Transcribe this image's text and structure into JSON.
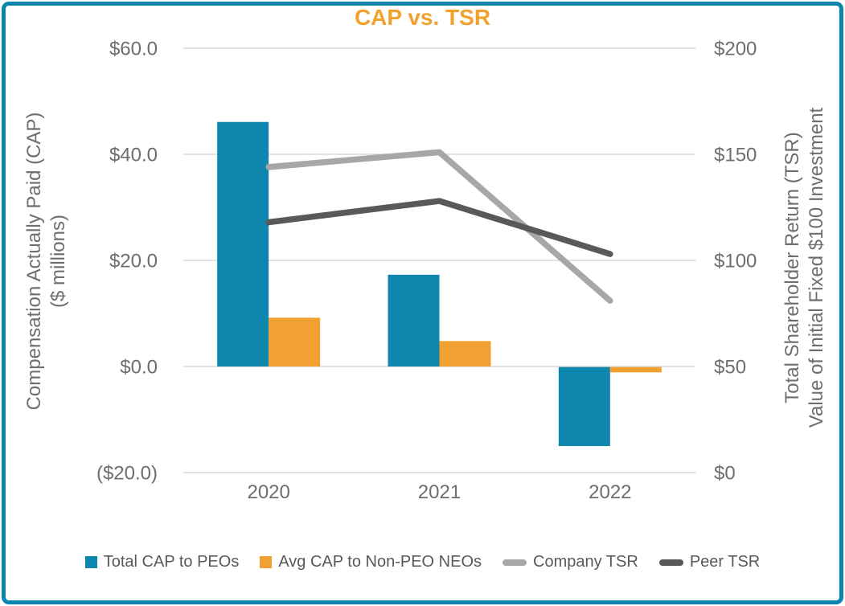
{
  "chart_data": {
    "type": "bar+line combo",
    "title": "CAP vs. TSR",
    "categories": [
      "2020",
      "2021",
      "2022"
    ],
    "series": [
      {
        "name": "Total CAP to PEOs",
        "type": "bar",
        "axis": "left",
        "color": "#0E86AD",
        "values": [
          46.1,
          17.3,
          -14.9
        ]
      },
      {
        "name": "Avg CAP to Non-PEO NEOs",
        "type": "bar",
        "axis": "left",
        "color": "#F0A132",
        "values": [
          9.2,
          4.8,
          -1.0
        ]
      },
      {
        "name": "Company TSR",
        "type": "line",
        "axis": "right",
        "color": "#A7A7A7",
        "values": [
          144,
          151,
          81
        ]
      },
      {
        "name": "Peer TSR",
        "type": "line",
        "axis": "right",
        "color": "#58595B",
        "values": [
          118,
          128,
          103
        ]
      }
    ],
    "left_axis": {
      "title_line1": "Compensation Actually Paid (CAP)",
      "title_line2": "($ millions)",
      "ticks": [
        "$60.0",
        "$40.0",
        "$20.0",
        "$0.0",
        "($20.0)"
      ],
      "tick_values": [
        60,
        40,
        20,
        0,
        -20
      ],
      "range": [
        -20,
        60
      ]
    },
    "right_axis": {
      "title_line1": "Total Shareholder Return (TSR)",
      "title_line2": "Value of Initial Fixed $100 Investment",
      "ticks": [
        "$200",
        "$150",
        "$100",
        "$50",
        "$0"
      ],
      "tick_values": [
        200,
        150,
        100,
        50,
        0
      ],
      "range": [
        0,
        200
      ]
    },
    "grid": true,
    "legend_position": "bottom"
  },
  "colors": {
    "title": "#F0A22C",
    "border": "#0A86AE",
    "gridline": "#D9D9D9",
    "axis_text": "#6E6E6E",
    "legend_text": "#595959"
  }
}
